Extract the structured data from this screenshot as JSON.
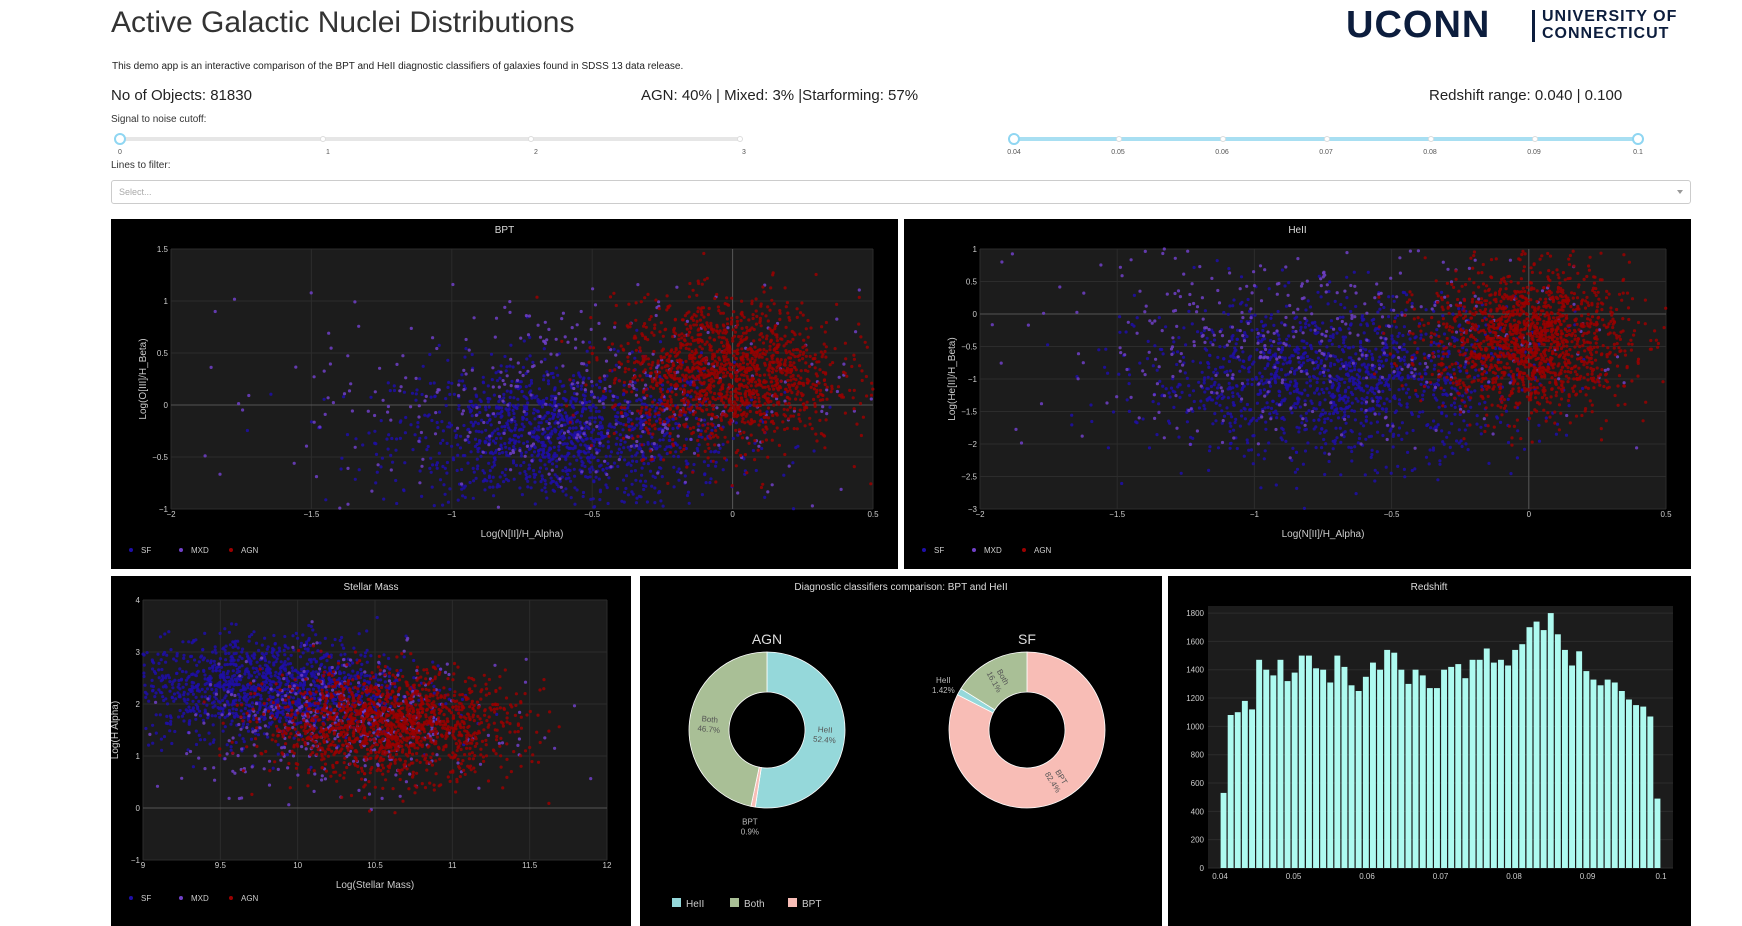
{
  "header": {
    "title": "Active Galactic Nuclei Distributions",
    "logo_main": "UCONN",
    "logo_sub_1": "UNIVERSITY OF",
    "logo_sub_2": "CONNECTICUT",
    "description": "This demo app is an interactive comparison of the BPT and HeII diagnostic classifiers of galaxies found in SDSS 13 data release."
  },
  "stats": {
    "objects": "No of Objects: 81830",
    "composition": "AGN: 40% | Mixed: 3% |Starforming: 57%",
    "redshift_range": "Redshift range: 0.040 | 0.100"
  },
  "controls": {
    "snr_label": "Signal to noise cutoff:",
    "snr_value": 0,
    "snr_marks": [
      "0",
      "1",
      "2",
      "3"
    ],
    "redshift_slider_value": [
      0.04,
      0.1
    ],
    "redshift_marks": [
      "0.04",
      "0.05",
      "0.06",
      "0.07",
      "0.08",
      "0.09",
      "0.1"
    ],
    "lines_label": "Lines to filter:",
    "lines_placeholder": "Select..."
  },
  "colors": {
    "sf": "#1f0ea8",
    "mxd": "#7040c8",
    "agn": "#9b0000",
    "hist": "#aefaf0",
    "pie_heii": "#95d8da",
    "pie_both": "#a9bf96",
    "pie_bpt": "#f8bdb6",
    "accent": "#8fd6f2"
  },
  "legend_names": [
    "SF",
    "MXD",
    "AGN"
  ],
  "chart_data": [
    {
      "type": "scatter",
      "title": "BPT",
      "xlabel": "Log(N[II]/H_Alpha)",
      "ylabel": "Log(O[III]/H_Beta)",
      "xlim": [
        -2,
        0.5
      ],
      "ylim": [
        -1,
        1.5
      ],
      "xticks": [
        "−2",
        "−1.5",
        "−1",
        "−0.5",
        "0",
        "0.5"
      ],
      "yticks": [
        "−1",
        "−0.5",
        "0",
        "0.5",
        "1",
        "1.5"
      ],
      "series": [
        {
          "name": "SF",
          "cluster": {
            "cx": -0.6,
            "cy": -0.3,
            "sx": 0.3,
            "sy": 0.35
          }
        },
        {
          "name": "MXD",
          "cluster": {
            "cx": -0.55,
            "cy": 0.1,
            "sx": 0.5,
            "sy": 0.5
          }
        },
        {
          "name": "AGN",
          "cluster": {
            "cx": -0.02,
            "cy": 0.3,
            "sx": 0.2,
            "sy": 0.35
          }
        }
      ]
    },
    {
      "type": "scatter",
      "title": "HeII",
      "xlabel": "Log(N[II]/H_Alpha)",
      "ylabel": "Log(He[II]/H_Beta)",
      "xlim": [
        -2,
        0.5
      ],
      "ylim": [
        -3,
        1
      ],
      "xticks": [
        "−2",
        "−1.5",
        "−1",
        "−0.5",
        "0",
        "0.5"
      ],
      "yticks": [
        "−3",
        "−2.5",
        "−2",
        "−1.5",
        "−1",
        "−0.5",
        "0",
        "0.5",
        "1"
      ],
      "series": [
        {
          "name": "SF",
          "cluster": {
            "cx": -0.7,
            "cy": -1.0,
            "sx": 0.35,
            "sy": 0.6
          }
        },
        {
          "name": "MXD",
          "cluster": {
            "cx": -0.8,
            "cy": -0.4,
            "sx": 0.5,
            "sy": 0.8
          }
        },
        {
          "name": "AGN",
          "cluster": {
            "cx": 0.0,
            "cy": -0.4,
            "sx": 0.18,
            "sy": 0.55
          }
        }
      ]
    },
    {
      "type": "scatter",
      "title": "Stellar Mass",
      "xlabel": "Log(Stellar Mass)",
      "ylabel": "Log(H Alpha)",
      "xlim": [
        9,
        12
      ],
      "ylim": [
        -1,
        4
      ],
      "xticks": [
        "9",
        "9.5",
        "10",
        "10.5",
        "11",
        "11.5",
        "12"
      ],
      "yticks": [
        "−1",
        "0",
        "1",
        "2",
        "3",
        "4"
      ],
      "series": [
        {
          "name": "SF",
          "cluster": {
            "cx": 9.8,
            "cy": 2.3,
            "sx": 0.45,
            "sy": 0.5
          }
        },
        {
          "name": "MXD",
          "cluster": {
            "cx": 10.3,
            "cy": 1.6,
            "sx": 0.5,
            "sy": 0.6
          }
        },
        {
          "name": "AGN",
          "cluster": {
            "cx": 10.6,
            "cy": 1.6,
            "sx": 0.4,
            "sy": 0.5
          }
        }
      ]
    },
    {
      "type": "pie",
      "title": "Diagnostic classifiers comparison: BPT and HeII",
      "legend": [
        "HeII",
        "Both",
        "BPT"
      ],
      "pies": [
        {
          "title": "AGN",
          "slices": [
            {
              "label": "HeII",
              "value": 52.4,
              "text": "52.4%"
            },
            {
              "label": "BPT",
              "value": 0.9,
              "text": "0.9%"
            },
            {
              "label": "Both",
              "value": 46.7,
              "text": "46.7%"
            }
          ]
        },
        {
          "title": "SF",
          "slices": [
            {
              "label": "BPT",
              "value": 82.4,
              "text": "82.4%"
            },
            {
              "label": "HeII",
              "value": 1.42,
              "text": "1.42%"
            },
            {
              "label": "Both",
              "value": 16.1,
              "text": "16.1%"
            }
          ]
        }
      ]
    },
    {
      "type": "bar",
      "title": "Redshift",
      "xlim": [
        0.04,
        0.1
      ],
      "ylim": [
        0,
        1850
      ],
      "xticks": [
        "0.04",
        "0.05",
        "0.06",
        "0.07",
        "0.08",
        "0.09",
        "0.1"
      ],
      "yticks": [
        "0",
        "200",
        "400",
        "600",
        "800",
        "1000",
        "1200",
        "1400",
        "1600",
        "1800"
      ],
      "bin_start": 0.04,
      "bin_width": 0.001,
      "values": [
        530,
        1080,
        1100,
        1180,
        1120,
        1470,
        1400,
        1360,
        1470,
        1320,
        1380,
        1500,
        1500,
        1410,
        1400,
        1310,
        1500,
        1420,
        1290,
        1250,
        1350,
        1450,
        1400,
        1540,
        1520,
        1400,
        1300,
        1400,
        1360,
        1270,
        1270,
        1400,
        1420,
        1440,
        1340,
        1470,
        1470,
        1550,
        1450,
        1470,
        1430,
        1540,
        1580,
        1700,
        1740,
        1680,
        1800,
        1650,
        1540,
        1430,
        1530,
        1390,
        1330,
        1290,
        1330,
        1310,
        1250,
        1190,
        1150,
        1140,
        1070,
        490
      ]
    }
  ]
}
